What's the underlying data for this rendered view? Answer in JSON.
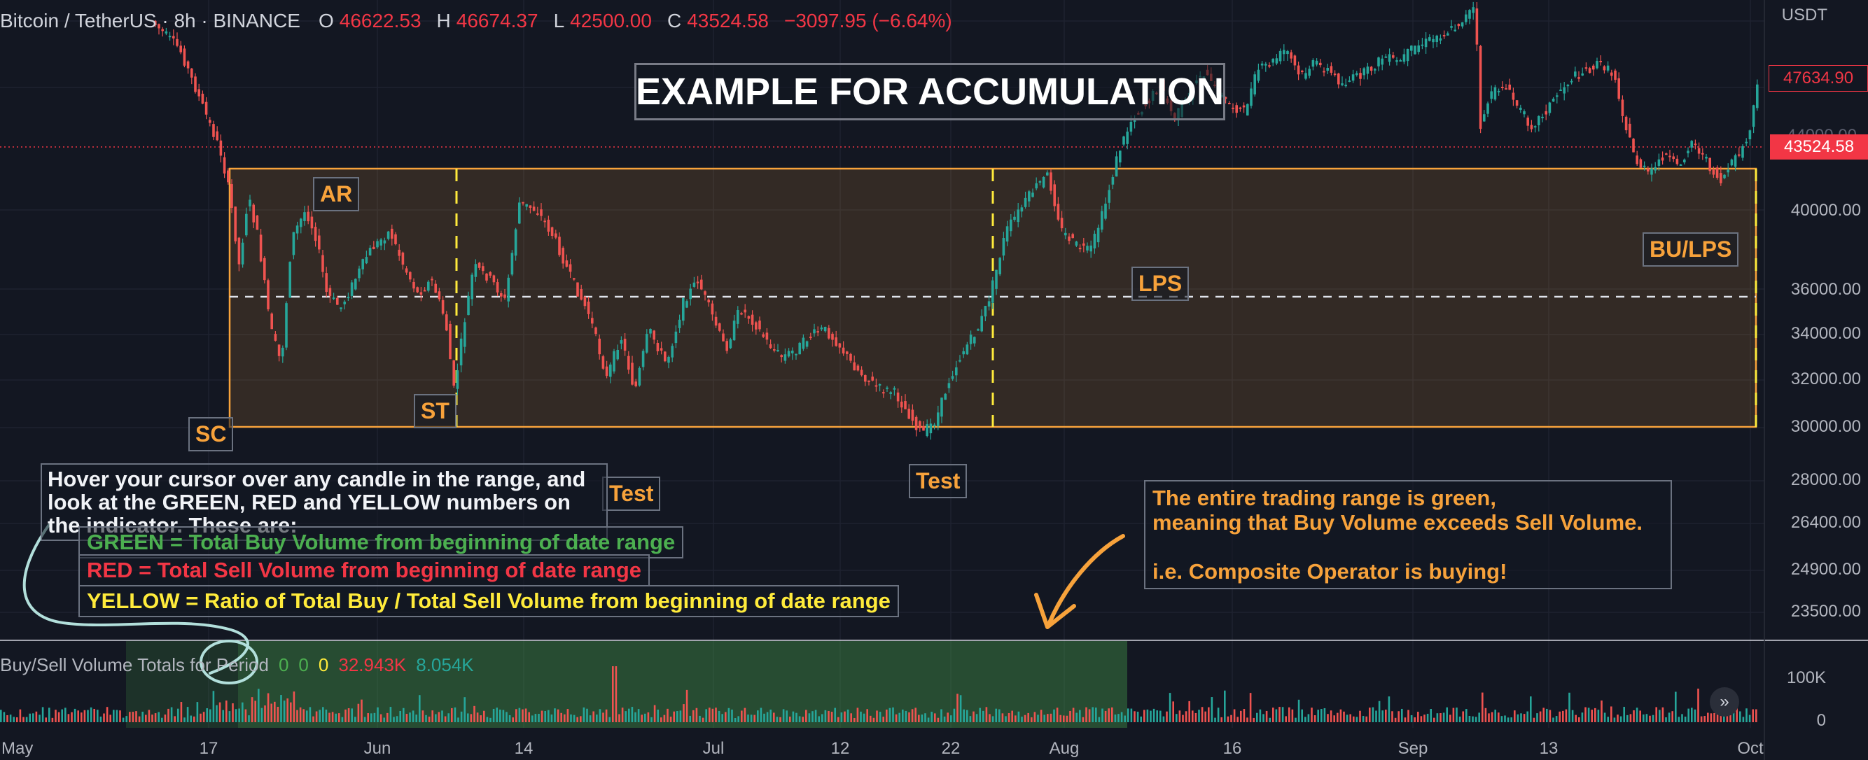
{
  "header": {
    "symbol": "Bitcoin / TetherUS · 8h · BINANCE",
    "open_label": "O",
    "open": "46622.53",
    "high_label": "H",
    "high": "46674.37",
    "low_label": "L",
    "low": "42500.00",
    "close_label": "C",
    "close": "43524.58",
    "change": "−3097.95 (−6.64%)"
  },
  "price_axis": {
    "currency": "USDT",
    "ticks": [
      "40000.00",
      "36000.00",
      "34000.00",
      "32000.00",
      "30000.00",
      "28000.00",
      "26400.00",
      "24900.00",
      "23500.00"
    ],
    "current_price": "47634.90",
    "close_price": "43524.58",
    "partial_tick": "44000.00"
  },
  "volume_axis": {
    "ticks": [
      "100K",
      "0"
    ]
  },
  "time_axis": {
    "labels": [
      "May",
      "17",
      "Jun",
      "14",
      "Jul",
      "12",
      "22",
      "Aug",
      "16",
      "Sep",
      "13",
      "Oct"
    ]
  },
  "annotations": {
    "title": "EXAMPLE FOR ACCUMULATION",
    "sc": "SC",
    "ar": "AR",
    "st": "ST",
    "test1": "Test",
    "test2": "Test",
    "lps": "LPS",
    "bu_lps": "BU/LPS",
    "hover_note": "Hover your cursor over any candle in the range, and look at the GREEN, RED and YELLOW numbers on the indicator. These are:",
    "green_note": "GREEN = Total Buy Volume from beginning of date range",
    "red_note": "RED = Total Sell Volume from beginning of date range",
    "yellow_note": "YELLOW = Ratio of Total Buy / Total Sell Volume from beginning of date range",
    "range_note": "The entire trading range is green,\nmeaning that Buy Volume exceeds Sell Volume.\n\ni.e. Composite Operator is buying!"
  },
  "indicator": {
    "name": "Buy/Sell Volume Totals for Period",
    "green": "0",
    "red": "0",
    "yellow": "0",
    "sell_total": "32.943K",
    "buy_total": "8.054K"
  },
  "colors": {
    "up": "#26a69a",
    "down": "#ef5350",
    "range": "#f7a23b",
    "background": "#131722"
  },
  "icons": {
    "scroll": "double-chevron-right-icon"
  }
}
